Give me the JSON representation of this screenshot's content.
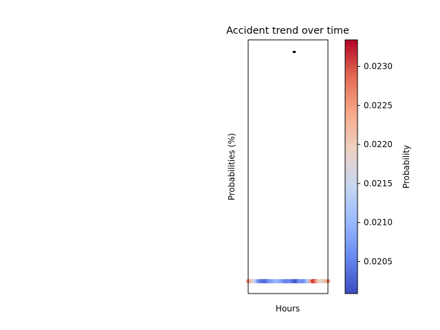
{
  "chart_data": {
    "type": "scatter",
    "title": "Accident trend over time",
    "xlabel": "Hours",
    "ylabel": "Probabilities (%)",
    "x_ticks_visible": false,
    "y_ticks_visible": false,
    "grid": false,
    "colormap": "coolwarm",
    "colorbar": {
      "label": "Probability",
      "range": [
        0.02009,
        0.02334
      ],
      "ticks": [
        0.0205,
        0.021,
        0.0215,
        0.022,
        0.0225,
        0.023
      ],
      "tick_labels": [
        "0.0205",
        "0.0210",
        "0.0215",
        "0.0220",
        "0.0225",
        "0.0230"
      ],
      "colors": [
        "#3b4cc0",
        "#6788ee",
        "#9abbff",
        "#c9d7f0",
        "#edd1c2",
        "#f7a889",
        "#e26952",
        "#b40426"
      ]
    },
    "annotation_marker": {
      "color": "#000000"
    },
    "series": [
      {
        "marker": "o",
        "points": [
          {
            "x": 0.0,
            "p": 0.0225
          },
          {
            "x": 0.03,
            "p": 0.0223
          },
          {
            "x": 0.06,
            "p": 0.0218
          },
          {
            "x": 0.09,
            "p": 0.0214
          },
          {
            "x": 0.12,
            "p": 0.0208
          },
          {
            "x": 0.15,
            "p": 0.0205
          },
          {
            "x": 0.18,
            "p": 0.0204
          },
          {
            "x": 0.21,
            "p": 0.0203
          },
          {
            "x": 0.24,
            "p": 0.0205
          },
          {
            "x": 0.27,
            "p": 0.0207
          },
          {
            "x": 0.3,
            "p": 0.0208
          },
          {
            "x": 0.33,
            "p": 0.0209
          },
          {
            "x": 0.36,
            "p": 0.021
          },
          {
            "x": 0.39,
            "p": 0.0209
          },
          {
            "x": 0.42,
            "p": 0.0208
          },
          {
            "x": 0.45,
            "p": 0.0206
          },
          {
            "x": 0.48,
            "p": 0.0205
          },
          {
            "x": 0.51,
            "p": 0.0206
          },
          {
            "x": 0.54,
            "p": 0.0205
          },
          {
            "x": 0.57,
            "p": 0.0203
          },
          {
            "x": 0.6,
            "p": 0.0202
          },
          {
            "x": 0.63,
            "p": 0.0205
          },
          {
            "x": 0.66,
            "p": 0.0207
          },
          {
            "x": 0.69,
            "p": 0.0206
          },
          {
            "x": 0.72,
            "p": 0.0208
          },
          {
            "x": 0.75,
            "p": 0.0212
          },
          {
            "x": 0.78,
            "p": 0.0224
          },
          {
            "x": 0.81,
            "p": 0.0231
          },
          {
            "x": 0.84,
            "p": 0.0229
          },
          {
            "x": 0.87,
            "p": 0.0222
          },
          {
            "x": 0.9,
            "p": 0.0219
          },
          {
            "x": 0.93,
            "p": 0.0217
          },
          {
            "x": 0.96,
            "p": 0.0222
          },
          {
            "x": 1.0,
            "p": 0.0226
          }
        ]
      }
    ]
  }
}
